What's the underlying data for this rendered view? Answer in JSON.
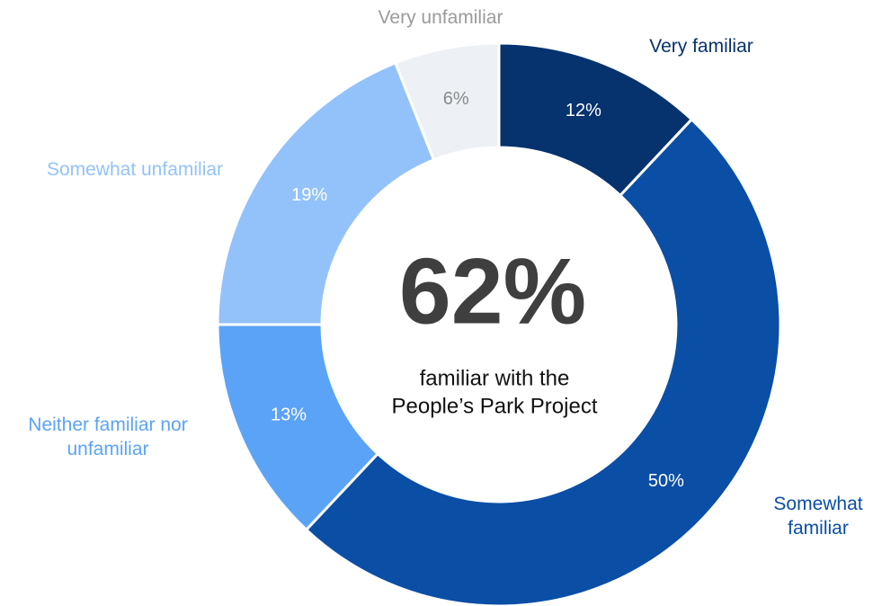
{
  "chart_data": {
    "type": "donut",
    "categories": [
      "Very familiar",
      "Somewhat familiar",
      "Neither familiar nor unfamiliar",
      "Somewhat unfamiliar",
      "Very unfamiliar"
    ],
    "values": [
      12,
      50,
      13,
      19,
      6
    ],
    "value_labels": [
      "12%",
      "50%",
      "13%",
      "19%",
      "6%"
    ],
    "colors": [
      "#06326e",
      "#0a4ea6",
      "#5ba3f7",
      "#93c2fb",
      "#edf1f5"
    ],
    "label_colors": [
      "#06326e",
      "#0a4ea6",
      "#5ba3f7",
      "#93c2fb",
      "#9a9a9a"
    ],
    "center_text": "62%",
    "center_caption": [
      "familiar with the",
      "People’s Park Project"
    ]
  }
}
